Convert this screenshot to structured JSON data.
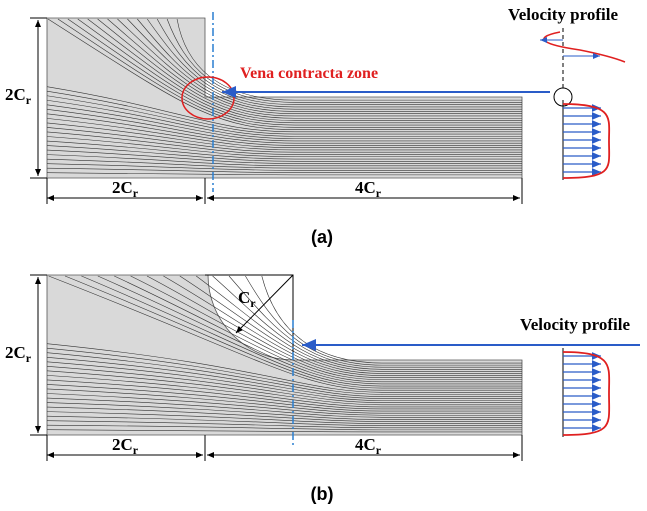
{
  "panel_a": {
    "caption": "(a)",
    "annotation": "Vena contracta zone",
    "profile_label": "Velocity profile",
    "height_label": {
      "main": "2C",
      "sub": "r"
    },
    "upstream_label": {
      "main": "2C",
      "sub": "r"
    },
    "downstream_label": {
      "main": "4C",
      "sub": "r"
    }
  },
  "panel_b": {
    "caption": "(b)",
    "profile_label": "Velocity profile",
    "radius_label": {
      "main": "C",
      "sub": "r"
    },
    "height_label": {
      "main": "2C",
      "sub": "r"
    },
    "upstream_label": {
      "main": "2C",
      "sub": "r"
    },
    "downstream_label": {
      "main": "4C",
      "sub": "r"
    }
  }
}
